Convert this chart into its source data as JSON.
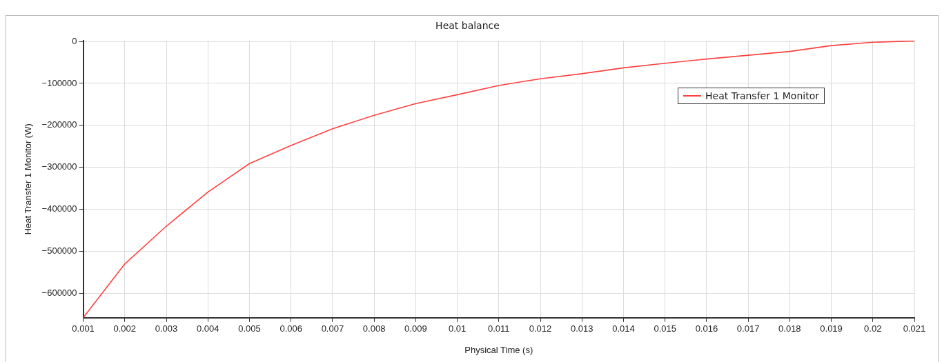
{
  "chart_data": {
    "type": "line",
    "title": "Heat balance",
    "xlabel": "Physical Time (s)",
    "ylabel": "Heat Transfer 1 Monitor (W)",
    "x": [
      0.001,
      0.002,
      0.003,
      0.004,
      0.005,
      0.006,
      0.007,
      0.008,
      0.009,
      0.01,
      0.011,
      0.012,
      0.013,
      0.014,
      0.015,
      0.016,
      0.017,
      0.018,
      0.019,
      0.02,
      0.021
    ],
    "series": [
      {
        "name": "Heat Transfer 1 Monitor",
        "color": "#ff4040",
        "values": [
          -658000,
          -530000,
          -440000,
          -359000,
          -291000,
          -248000,
          -208000,
          -176000,
          -148000,
          -127000,
          -105000,
          -89000,
          -77000,
          -63000,
          -52000,
          -42000,
          -33000,
          -24000,
          -10000,
          -2000,
          1000
        ]
      }
    ],
    "xlim": [
      0.001,
      0.021
    ],
    "xticks": [
      0.001,
      0.002,
      0.003,
      0.004,
      0.005,
      0.006,
      0.007,
      0.008,
      0.009,
      0.01,
      0.011,
      0.012,
      0.013,
      0.014,
      0.015,
      0.016,
      0.017,
      0.018,
      0.019,
      0.02,
      0.021
    ],
    "ylim": [
      -658000,
      2000
    ],
    "yticks": [
      -600000,
      -500000,
      -400000,
      -300000,
      -200000,
      -100000,
      0
    ],
    "grid": true,
    "legend": "top right",
    "marker": "none",
    "line_style": "solid"
  }
}
